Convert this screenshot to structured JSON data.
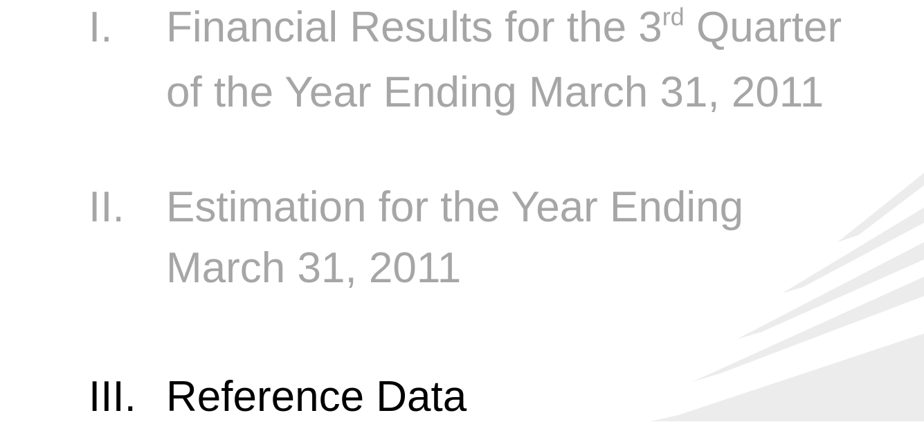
{
  "agenda": {
    "items": [
      {
        "numeral": "I.",
        "active": false,
        "lines": [
          {
            "text": "Financial Results for the 3",
            "sup": "rd",
            "rest": " Quarter"
          },
          {
            "text": "of the Year Ending March 31, 2011"
          }
        ]
      },
      {
        "numeral": "II.",
        "active": false,
        "lines": [
          {
            "text": "Estimation for the Year Ending"
          },
          {
            "text": "March 31, 2011"
          }
        ]
      },
      {
        "numeral": "III.",
        "active": true,
        "lines": [
          {
            "text": "Reference Data"
          }
        ]
      }
    ]
  }
}
